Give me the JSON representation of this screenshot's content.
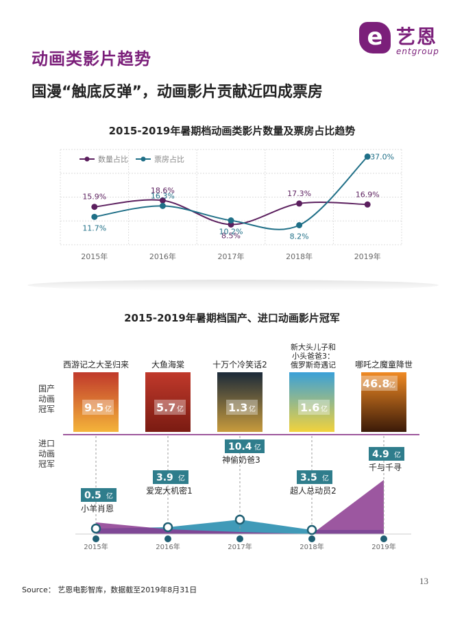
{
  "logo": {
    "badge": "e",
    "cn": "艺恩",
    "en": "entgroup"
  },
  "section_title": "动画类影片趋势",
  "headline": "国漫“触底反弹”，动画影片贡献近四成票房",
  "chart_data": [
    {
      "type": "line",
      "title": "2015-2019年暑期档动画类影片数量及票房占比趋势",
      "categories": [
        "2015年",
        "2016年",
        "2017年",
        "2018年",
        "2019年"
      ],
      "series": [
        {
          "name": "数量占比",
          "color": "#5b1f5e",
          "values": [
            15.9,
            18.6,
            8.5,
            17.3,
            16.9
          ],
          "labels": [
            "15.9%",
            "18.6%",
            "8.5%",
            "17.3%",
            "16.9%"
          ]
        },
        {
          "name": "票房占比",
          "color": "#1f6f87",
          "values": [
            11.7,
            16.3,
            10.2,
            8.2,
            37.0
          ],
          "labels": [
            "11.7%",
            "16.3%",
            "10.2%",
            "8.2%",
            "37.0%"
          ]
        }
      ],
      "ylim": [
        0,
        40
      ],
      "grid": true,
      "legend": "top-left"
    },
    {
      "type": "area",
      "title": "2015-2019年暑期档国产、进口动画影片冠军",
      "categories": [
        "2015年",
        "2016年",
        "2017年",
        "2018年",
        "2019年"
      ],
      "row_labels": {
        "domestic": "国产动画冠军",
        "import": "进口动画冠军"
      },
      "unit": "亿",
      "domestic": [
        {
          "film": "西游记之大圣归来",
          "value": 9.5,
          "value_label": "9.5"
        },
        {
          "film": "大鱼海棠",
          "value": 5.7,
          "value_label": "5.7"
        },
        {
          "film": "十万个冷笑话2",
          "value": 1.3,
          "value_label": "1.3"
        },
        {
          "film": "新大头儿子和小头爸爸3：俄罗斯奇遇记",
          "value": 1.6,
          "value_label": "1.6"
        },
        {
          "film": "哪吒之魔童降世",
          "value": 46.8,
          "value_label": "46.8"
        }
      ],
      "imports": [
        {
          "film": "小羊肖恩",
          "value": 0.5,
          "value_label": "0.5"
        },
        {
          "film": "爱宠大机密1",
          "value": 3.9,
          "value_label": "3.9"
        },
        {
          "film": "神偷奶爸3",
          "value": 10.4,
          "value_label": "10.4"
        },
        {
          "film": "超人总动员2",
          "value": 3.5,
          "value_label": "3.5"
        },
        {
          "film": "千与千寻",
          "value": 4.9,
          "value_label": "4.9"
        }
      ],
      "colors": {
        "domestic": "#8b3a8f",
        "import": "#2b8fb0",
        "badge": "#2f7d8c"
      }
    }
  ],
  "source": "Source： 艺恩电影智库，数据截至2019年8月31日",
  "page_number": "13"
}
